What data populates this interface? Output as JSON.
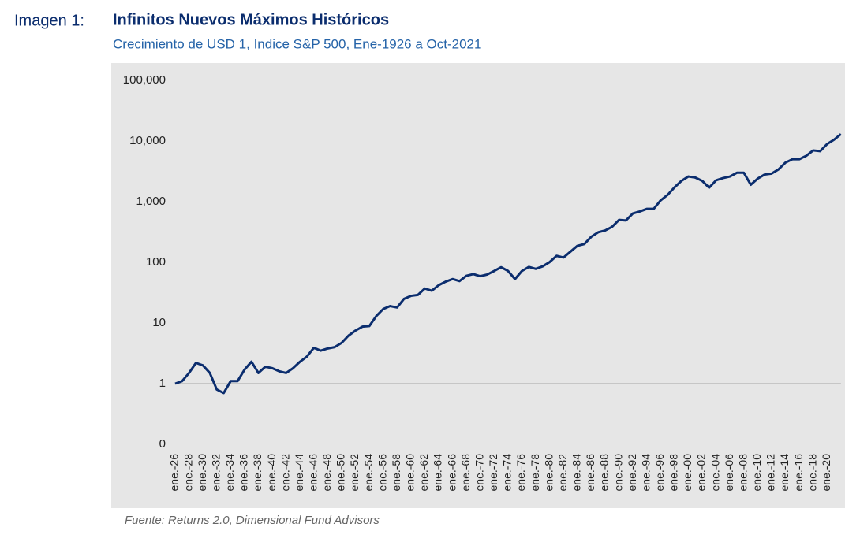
{
  "chart_data": {
    "type": "line",
    "figure_label": "Imagen 1:",
    "title": "Infinitos Nuevos Máximos Históricos",
    "subtitle": "Crecimiento de USD 1, Indice S&P 500, Ene-1926 a Oct-2021",
    "source": "Fuente: Returns 2.0, Dimensional Fund Advisors",
    "y_scale": "log",
    "ylim": [
      0.1,
      100000
    ],
    "yticks": [
      {
        "value": 0.1,
        "label": "0"
      },
      1,
      10,
      100,
      {
        "value": 1000,
        "label": "1,000"
      },
      {
        "value": 10000,
        "label": "10,000"
      },
      {
        "value": 100000,
        "label": "100,000"
      }
    ],
    "grid": false,
    "categories": [
      "ene.-26",
      null,
      "ene.-28",
      null,
      "ene.-30",
      null,
      "ene.-32",
      null,
      "ene.-34",
      null,
      "ene.-36",
      null,
      "ene.-38",
      null,
      "ene.-40",
      null,
      "ene.-42",
      null,
      "ene.-44",
      null,
      "ene.-46",
      null,
      "ene.-48",
      null,
      "ene.-50",
      null,
      "ene.-52",
      null,
      "ene.-54",
      null,
      "ene.-56",
      null,
      "ene.-58",
      null,
      "ene.-60",
      null,
      "ene.-62",
      null,
      "ene.-64",
      null,
      "ene.-66",
      null,
      "ene.-68",
      null,
      "ene.-70",
      null,
      "ene.-72",
      null,
      "ene.-74",
      null,
      "ene.-76",
      null,
      "ene.-78",
      null,
      "ene.-80",
      null,
      "ene.-82",
      null,
      "ene.-84",
      null,
      "ene.-86",
      null,
      "ene.-88",
      null,
      "ene.-90",
      null,
      "ene.-92",
      null,
      "ene.-94",
      null,
      "ene.-96",
      null,
      "ene.-98",
      null,
      "ene.-00",
      null,
      "ene.-02",
      null,
      "ene.-04",
      null,
      "ene.-06",
      null,
      "ene.-08",
      null,
      "ene.-10",
      null,
      "ene.-12",
      null,
      "ene.-14",
      null,
      "ene.-16",
      null,
      "ene.-18",
      null,
      "ene.-20",
      null,
      null
    ],
    "series": [
      {
        "name": "S&P 500",
        "color": "#0b2d6e",
        "values": [
          1.0,
          1.1,
          1.5,
          2.2,
          2.0,
          1.5,
          0.8,
          0.7,
          1.1,
          1.1,
          1.7,
          2.3,
          1.5,
          1.9,
          1.8,
          1.6,
          1.5,
          1.8,
          2.3,
          2.8,
          3.9,
          3.5,
          3.8,
          4.0,
          4.7,
          6.2,
          7.5,
          8.7,
          8.9,
          13,
          17,
          19,
          18,
          25,
          28,
          29,
          37,
          34,
          42,
          48,
          53,
          49,
          60,
          64,
          59,
          63,
          72,
          83,
          72,
          53,
          72,
          84,
          78,
          86,
          101,
          128,
          120,
          150,
          187,
          200,
          264,
          313,
          335,
          385,
          500,
          490,
          640,
          690,
          760,
          760,
          1050,
          1290,
          1720,
          2200,
          2600,
          2500,
          2200,
          1700,
          2250,
          2450,
          2600,
          3000,
          3000,
          1900,
          2400,
          2800,
          2900,
          3400,
          4400,
          5000,
          5000,
          5700,
          7000,
          6800,
          8900,
          10500,
          13000
        ]
      }
    ]
  }
}
